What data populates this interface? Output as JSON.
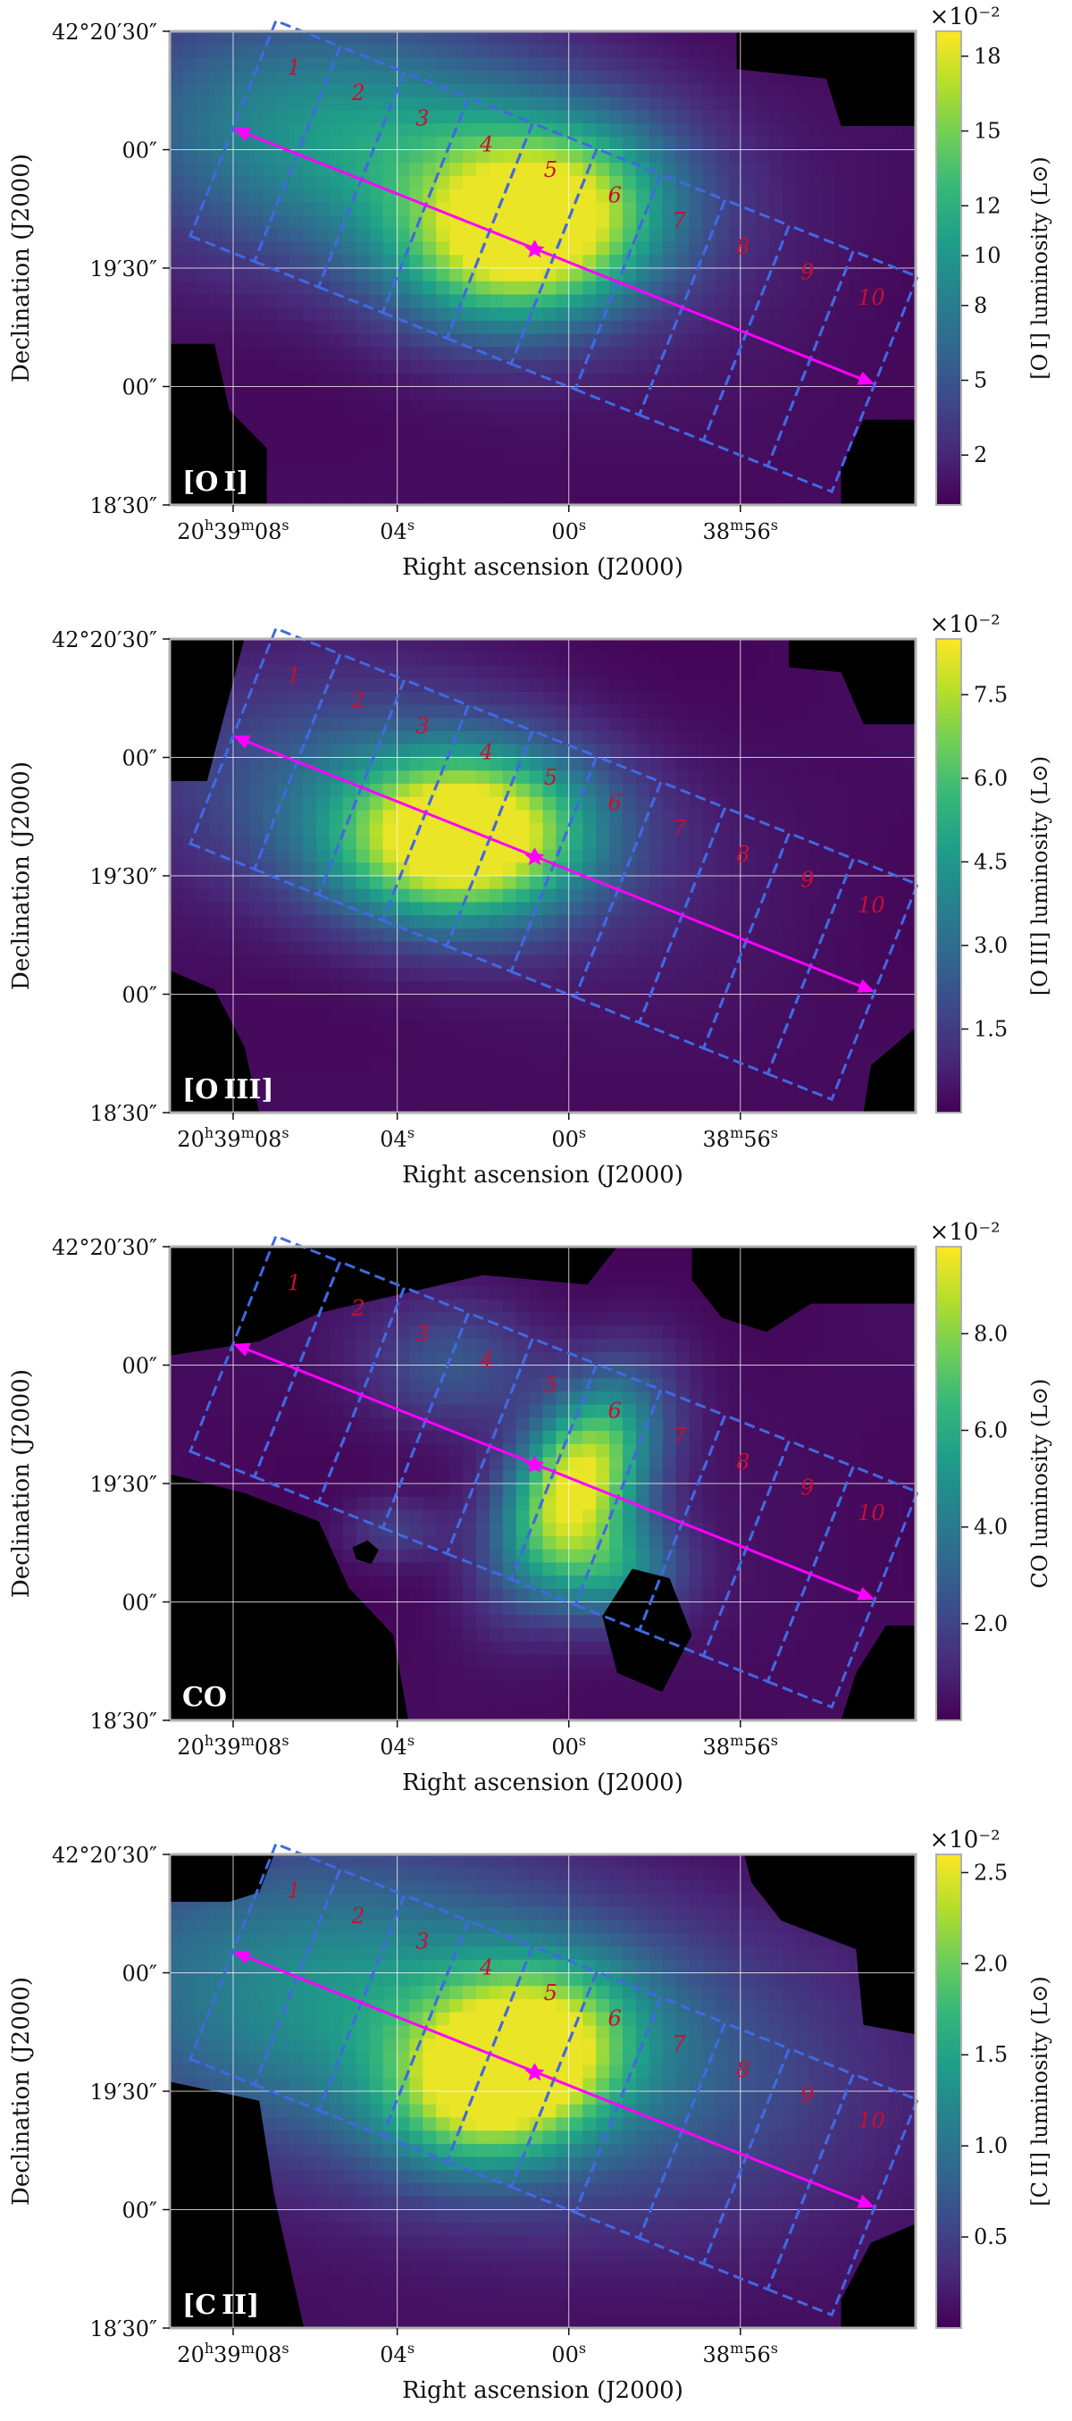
{
  "chart_data": [
    {
      "type": "heatmap",
      "panel_label": "[O I]",
      "colorbar": {
        "label": "[O I] luminosity (L⊙)",
        "exponent": "×10⁻²",
        "ticks": [
          {
            "v": 2,
            "t": "2"
          },
          {
            "v": 5,
            "t": "5"
          },
          {
            "v": 8,
            "t": "8"
          },
          {
            "v": 10,
            "t": "10"
          },
          {
            "v": 12,
            "t": "12"
          },
          {
            "v": 15,
            "t": "15"
          },
          {
            "v": 18,
            "t": "18"
          }
        ],
        "range": [
          0,
          19
        ]
      },
      "peaks": [
        {
          "x": 0.485,
          "y": 0.42,
          "sx": 0.11,
          "sy": 0.14,
          "amp": 1.0,
          "rot": -22
        },
        {
          "x": 0.28,
          "y": 0.25,
          "sx": 0.26,
          "sy": 0.18,
          "amp": 0.55,
          "rot": -22
        }
      ],
      "masks": [
        {
          "pts": [
            [
              0.76,
              0
            ],
            [
              1,
              0
            ],
            [
              1,
              0.2
            ],
            [
              0.9,
              0.2
            ],
            [
              0.88,
              0.1
            ],
            [
              0.76,
              0.08
            ]
          ]
        },
        {
          "pts": [
            [
              0,
              0.66
            ],
            [
              0.06,
              0.66
            ],
            [
              0.08,
              0.8
            ],
            [
              0.13,
              0.88
            ],
            [
              0.13,
              1
            ],
            [
              0,
              1
            ]
          ]
        },
        {
          "pts": [
            [
              0.9,
              0.92
            ],
            [
              0.93,
              0.82
            ],
            [
              1,
              0.82
            ],
            [
              1,
              1
            ],
            [
              0.9,
              1
            ]
          ]
        }
      ],
      "regions": [
        "1",
        "2",
        "3",
        "4",
        "5",
        "6",
        "7",
        "8",
        "9",
        "10"
      ]
    },
    {
      "type": "heatmap",
      "panel_label": "[O III]",
      "colorbar": {
        "label": "[O III] luminosity (L⊙)",
        "exponent": "×10⁻²",
        "ticks": [
          {
            "v": 1.5,
            "t": "1.5"
          },
          {
            "v": 3.0,
            "t": "3.0"
          },
          {
            "v": 4.5,
            "t": "4.5"
          },
          {
            "v": 6.0,
            "t": "6.0"
          },
          {
            "v": 7.5,
            "t": "7.5"
          }
        ],
        "range": [
          0,
          8.5
        ]
      },
      "peaks": [
        {
          "x": 0.395,
          "y": 0.42,
          "sx": 0.11,
          "sy": 0.12,
          "amp": 1.0,
          "rot": -25
        },
        {
          "x": 0.3,
          "y": 0.36,
          "sx": 0.22,
          "sy": 0.16,
          "amp": 0.35,
          "rot": -25
        }
      ],
      "masks": [
        {
          "pts": [
            [
              0,
              0
            ],
            [
              0.1,
              0
            ],
            [
              0.08,
              0.12
            ],
            [
              0.05,
              0.3
            ],
            [
              0,
              0.3
            ]
          ]
        },
        {
          "pts": [
            [
              0.83,
              0
            ],
            [
              1,
              0
            ],
            [
              1,
              0.18
            ],
            [
              0.93,
              0.18
            ],
            [
              0.9,
              0.07
            ],
            [
              0.83,
              0.06
            ]
          ]
        },
        {
          "pts": [
            [
              0,
              0.7
            ],
            [
              0.06,
              0.74
            ],
            [
              0.1,
              0.86
            ],
            [
              0.12,
              1
            ],
            [
              0,
              1
            ]
          ]
        },
        {
          "pts": [
            [
              0.94,
              0.9
            ],
            [
              1,
              0.82
            ],
            [
              1,
              1
            ],
            [
              0.93,
              1
            ]
          ]
        }
      ],
      "regions": [
        "1",
        "2",
        "3",
        "4",
        "5",
        "6",
        "7",
        "8",
        "9",
        "10"
      ]
    },
    {
      "type": "heatmap",
      "panel_label": "CO",
      "colorbar": {
        "label": "CO luminosity (L⊙)",
        "exponent": "×10⁻²",
        "ticks": [
          {
            "v": 2.0,
            "t": "2.0"
          },
          {
            "v": 4.0,
            "t": "4.0"
          },
          {
            "v": 6.0,
            "t": "6.0"
          },
          {
            "v": 8.0,
            "t": "8.0"
          }
        ],
        "range": [
          0,
          9.8
        ]
      },
      "peaks": [
        {
          "x": 0.545,
          "y": 0.5,
          "sx": 0.06,
          "sy": 0.15,
          "amp": 1.0,
          "rot": -15
        },
        {
          "x": 0.6,
          "y": 0.68,
          "sx": 0.06,
          "sy": 0.08,
          "amp": 0.45,
          "rot": 0
        },
        {
          "x": 0.38,
          "y": 0.25,
          "sx": 0.08,
          "sy": 0.09,
          "amp": 0.25,
          "rot": 0
        },
        {
          "x": 0.3,
          "y": 0.6,
          "sx": 0.05,
          "sy": 0.05,
          "amp": 0.18,
          "rot": 0
        }
      ],
      "masks": [
        {
          "pts": [
            [
              0,
              0
            ],
            [
              0.6,
              0
            ],
            [
              0.56,
              0.08
            ],
            [
              0.42,
              0.06
            ],
            [
              0.2,
              0.14
            ],
            [
              0.12,
              0.2
            ],
            [
              0.0,
              0.23
            ]
          ]
        },
        {
          "pts": [
            [
              0.7,
              0
            ],
            [
              1,
              0
            ],
            [
              1,
              0.12
            ],
            [
              0.86,
              0.12
            ],
            [
              0.8,
              0.18
            ],
            [
              0.74,
              0.15
            ],
            [
              0.7,
              0.07
            ]
          ]
        },
        {
          "pts": [
            [
              0,
              0.48
            ],
            [
              0.1,
              0.52
            ],
            [
              0.2,
              0.58
            ],
            [
              0.24,
              0.72
            ],
            [
              0.3,
              0.82
            ],
            [
              0.32,
              1
            ],
            [
              0,
              1
            ]
          ]
        },
        {
          "pts": [
            [
              0.62,
              0.68
            ],
            [
              0.67,
              0.7
            ],
            [
              0.7,
              0.82
            ],
            [
              0.66,
              0.94
            ],
            [
              0.6,
              0.9
            ],
            [
              0.58,
              0.78
            ]
          ]
        },
        {
          "pts": [
            [
              0.92,
              0.9
            ],
            [
              0.96,
              0.8
            ],
            [
              1,
              0.8
            ],
            [
              1,
              1
            ],
            [
              0.9,
              1
            ]
          ]
        },
        {
          "pts": [
            [
              0.245,
              0.635
            ],
            [
              0.265,
              0.62
            ],
            [
              0.28,
              0.64
            ],
            [
              0.27,
              0.67
            ],
            [
              0.25,
              0.66
            ]
          ]
        }
      ],
      "regions": [
        "1",
        "2",
        "3",
        "4",
        "5",
        "6",
        "7",
        "8",
        "9",
        "10"
      ]
    },
    {
      "type": "heatmap",
      "panel_label": "[C II]",
      "colorbar": {
        "label": "[C II] luminosity (L⊙)",
        "exponent": "×10⁻²",
        "ticks": [
          {
            "v": 0.5,
            "t": "0.5"
          },
          {
            "v": 1.0,
            "t": "1.0"
          },
          {
            "v": 1.5,
            "t": "1.5"
          },
          {
            "v": 2.0,
            "t": "2.0"
          },
          {
            "v": 2.5,
            "t": "2.5"
          }
        ],
        "range": [
          0,
          2.6
        ]
      },
      "peaks": [
        {
          "x": 0.455,
          "y": 0.45,
          "sx": 0.09,
          "sy": 0.13,
          "amp": 1.0,
          "rot": -20
        },
        {
          "x": 0.33,
          "y": 0.35,
          "sx": 0.35,
          "sy": 0.22,
          "amp": 0.55,
          "rot": -20
        }
      ],
      "masks": [
        {
          "pts": [
            [
              0,
              0
            ],
            [
              0.14,
              0
            ],
            [
              0.12,
              0.08
            ],
            [
              0.08,
              0.1
            ],
            [
              0,
              0.1
            ]
          ]
        },
        {
          "pts": [
            [
              0.77,
              0
            ],
            [
              1,
              0
            ],
            [
              1,
              0.38
            ],
            [
              0.93,
              0.36
            ],
            [
              0.92,
              0.2
            ],
            [
              0.82,
              0.14
            ],
            [
              0.78,
              0.06
            ]
          ]
        },
        {
          "pts": [
            [
              0,
              0.48
            ],
            [
              0.12,
              0.52
            ],
            [
              0.14,
              0.72
            ],
            [
              0.18,
              1
            ],
            [
              0,
              1
            ]
          ]
        },
        {
          "pts": [
            [
              0.9,
              0.94
            ],
            [
              0.94,
              0.82
            ],
            [
              1,
              0.78
            ],
            [
              1,
              1
            ],
            [
              0.9,
              1
            ]
          ]
        }
      ],
      "regions": [
        "1",
        "2",
        "3",
        "4",
        "5",
        "6",
        "7",
        "8",
        "9",
        "10"
      ]
    }
  ],
  "axes": {
    "xlabel": "Right ascension (J2000)",
    "ylabel": "Declination (J2000)",
    "xticks": [
      {
        "h": "20",
        "hs": "h",
        "m": "39",
        "ms": "m",
        "s": "08",
        "ss": "s"
      },
      {
        "s": "04",
        "ss": "s"
      },
      {
        "s": "00",
        "ss": "s"
      },
      {
        "m": "38",
        "ms": "m",
        "s": "56",
        "ss": "s"
      }
    ],
    "yticks": [
      {
        "t": "42°20′30″"
      },
      {
        "t": "00″"
      },
      {
        "t": "19′30″"
      },
      {
        "t": "00″"
      },
      {
        "t": "18′30″"
      }
    ]
  },
  "colors": {
    "cmap": [
      "#440154",
      "#482878",
      "#3e4989",
      "#31688e",
      "#26828e",
      "#1f9e89",
      "#35b779",
      "#6ece58",
      "#b5de2b",
      "#fde725"
    ],
    "region_outline": "#4169e1",
    "region_number": "#c8102e",
    "cut_arrow": "#ff00ff",
    "mask": "#000000"
  }
}
